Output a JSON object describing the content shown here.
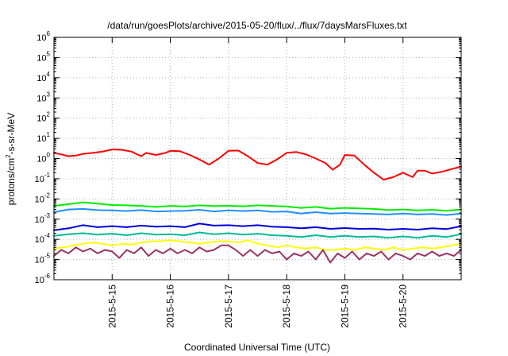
{
  "chart_data": {
    "type": "line",
    "title": "/data/run/goesPlots/archive/2015-05-20/flux/../flux/7daysMarsFluxes.txt",
    "xlabel": "Coordinated Universal Time (UTC)",
    "ylabel": {
      "pre": "protons/cm",
      "sup": "2",
      "post": "-s-sr-MeV"
    },
    "y_scale": "log",
    "ylim": [
      1e-06,
      1000000
    ],
    "y_ticks": [
      {
        "base": "10",
        "exp": "-6"
      },
      {
        "base": "10",
        "exp": "-5"
      },
      {
        "base": "10",
        "exp": "-4"
      },
      {
        "base": "10",
        "exp": "-3"
      },
      {
        "base": "10",
        "exp": "-2"
      },
      {
        "base": "10",
        "exp": "-1"
      },
      {
        "base": "10",
        "exp": "0"
      },
      {
        "base": "10",
        "exp": "1"
      },
      {
        "base": "10",
        "exp": "2"
      },
      {
        "base": "10",
        "exp": "3"
      },
      {
        "base": "10",
        "exp": "4"
      },
      {
        "base": "10",
        "exp": "5"
      },
      {
        "base": "10",
        "exp": "6"
      }
    ],
    "x_start": "2015-05-14 00:00",
    "x_end": "2015-05-21 00:00",
    "x_ticks": [
      "2015-5-15",
      "2015-5-16",
      "2015-5-17",
      "2015-5-18",
      "2015-5-19",
      "2015-5-20"
    ],
    "grid": true,
    "series": [
      {
        "color": "#ff0000",
        "x": [
          "2015-05-14 00:00",
          "2015-05-14 03:00",
          "2015-05-14 06:00",
          "2015-05-14 09:00",
          "2015-05-14 12:00",
          "2015-05-14 16:00",
          "2015-05-14 20:00",
          "2015-05-15 00:00",
          "2015-05-15 04:00",
          "2015-05-15 08:00",
          "2015-05-15 12:00",
          "2015-05-15 14:00",
          "2015-05-15 18:00",
          "2015-05-15 22:00",
          "2015-05-16 00:00",
          "2015-05-16 04:00",
          "2015-05-16 08:00",
          "2015-05-16 12:00",
          "2015-05-16 16:00",
          "2015-05-16 20:00",
          "2015-05-17 00:00",
          "2015-05-17 04:00",
          "2015-05-17 08:00",
          "2015-05-17 12:00",
          "2015-05-17 16:00",
          "2015-05-17 20:00",
          "2015-05-18 00:00",
          "2015-05-18 04:00",
          "2015-05-18 08:00",
          "2015-05-18 12:00",
          "2015-05-18 16:00",
          "2015-05-18 19:00",
          "2015-05-18 22:00",
          "2015-05-19 00:00",
          "2015-05-19 04:00",
          "2015-05-19 08:00",
          "2015-05-19 12:00",
          "2015-05-19 16:00",
          "2015-05-19 20:00",
          "2015-05-20 00:00",
          "2015-05-20 04:00",
          "2015-05-20 06:00",
          "2015-05-20 09:00",
          "2015-05-20 12:00",
          "2015-05-20 16:00",
          "2015-05-20 20:00",
          "2015-05-21 00:00"
        ],
        "values": [
          1.9,
          1.6,
          1.3,
          1.4,
          1.7,
          1.9,
          2.2,
          2.8,
          2.7,
          2.2,
          1.3,
          1.9,
          1.5,
          1.9,
          2.4,
          2.3,
          1.5,
          0.9,
          0.5,
          1.0,
          2.4,
          2.5,
          1.3,
          0.6,
          0.5,
          0.9,
          1.9,
          2.1,
          1.6,
          1.0,
          0.6,
          0.28,
          0.5,
          1.5,
          1.4,
          0.5,
          0.2,
          0.09,
          0.12,
          0.2,
          0.12,
          0.25,
          0.25,
          0.18,
          0.22,
          0.3,
          0.4
        ]
      },
      {
        "color": "#00ee00",
        "x": [
          "2015-05-14 00:00",
          "2015-05-14 06:00",
          "2015-05-14 12:00",
          "2015-05-14 18:00",
          "2015-05-15 00:00",
          "2015-05-15 06:00",
          "2015-05-15 12:00",
          "2015-05-15 18:00",
          "2015-05-16 00:00",
          "2015-05-16 06:00",
          "2015-05-16 12:00",
          "2015-05-16 18:00",
          "2015-05-17 00:00",
          "2015-05-17 06:00",
          "2015-05-17 12:00",
          "2015-05-17 18:00",
          "2015-05-18 00:00",
          "2015-05-18 06:00",
          "2015-05-18 12:00",
          "2015-05-18 18:00",
          "2015-05-19 00:00",
          "2015-05-19 06:00",
          "2015-05-19 12:00",
          "2015-05-19 18:00",
          "2015-05-20 00:00",
          "2015-05-20 06:00",
          "2015-05-20 12:00",
          "2015-05-20 18:00",
          "2015-05-21 00:00"
        ],
        "values": [
          0.0045,
          0.0055,
          0.0068,
          0.0058,
          0.005,
          0.0048,
          0.0045,
          0.004,
          0.0045,
          0.0042,
          0.0048,
          0.0044,
          0.0046,
          0.0043,
          0.0048,
          0.0045,
          0.0042,
          0.0036,
          0.004,
          0.0033,
          0.0036,
          0.0034,
          0.0032,
          0.0028,
          0.003,
          0.0027,
          0.0029,
          0.0026,
          0.003
        ]
      },
      {
        "color": "#1e90ff",
        "x": [
          "2015-05-14 00:00",
          "2015-05-14 06:00",
          "2015-05-14 12:00",
          "2015-05-14 18:00",
          "2015-05-15 00:00",
          "2015-05-15 06:00",
          "2015-05-15 12:00",
          "2015-05-15 18:00",
          "2015-05-16 00:00",
          "2015-05-16 06:00",
          "2015-05-16 12:00",
          "2015-05-16 18:00",
          "2015-05-17 00:00",
          "2015-05-17 06:00",
          "2015-05-17 12:00",
          "2015-05-17 18:00",
          "2015-05-18 00:00",
          "2015-05-18 06:00",
          "2015-05-18 12:00",
          "2015-05-18 18:00",
          "2015-05-19 00:00",
          "2015-05-19 06:00",
          "2015-05-19 12:00",
          "2015-05-19 18:00",
          "2015-05-20 00:00",
          "2015-05-20 06:00",
          "2015-05-20 12:00",
          "2015-05-20 18:00",
          "2015-05-21 00:00"
        ],
        "values": [
          0.0022,
          0.003,
          0.0032,
          0.0028,
          0.0027,
          0.0025,
          0.0028,
          0.0024,
          0.0025,
          0.0026,
          0.0029,
          0.0024,
          0.0027,
          0.0025,
          0.0027,
          0.0023,
          0.0024,
          0.0019,
          0.0022,
          0.0019,
          0.002,
          0.0019,
          0.0018,
          0.0017,
          0.0019,
          0.0017,
          0.0018,
          0.0016,
          0.0019
        ]
      },
      {
        "color": "#0000dd",
        "x": [
          "2015-05-14 00:00",
          "2015-05-14 06:00",
          "2015-05-14 12:00",
          "2015-05-14 18:00",
          "2015-05-15 00:00",
          "2015-05-15 06:00",
          "2015-05-15 12:00",
          "2015-05-15 18:00",
          "2015-05-16 00:00",
          "2015-05-16 06:00",
          "2015-05-16 12:00",
          "2015-05-16 18:00",
          "2015-05-17 00:00",
          "2015-05-17 06:00",
          "2015-05-17 12:00",
          "2015-05-17 18:00",
          "2015-05-18 00:00",
          "2015-05-18 06:00",
          "2015-05-18 12:00",
          "2015-05-18 18:00",
          "2015-05-19 00:00",
          "2015-05-19 06:00",
          "2015-05-19 12:00",
          "2015-05-19 18:00",
          "2015-05-20 00:00",
          "2015-05-20 06:00",
          "2015-05-20 12:00",
          "2015-05-20 18:00",
          "2015-05-21 00:00"
        ],
        "values": [
          0.00028,
          0.00035,
          0.0005,
          0.0004,
          0.00045,
          0.0004,
          0.00048,
          0.00042,
          0.00045,
          0.0004,
          0.0006,
          0.00048,
          0.0005,
          0.00045,
          0.0005,
          0.00042,
          0.0004,
          0.00035,
          0.0004,
          0.00033,
          0.00036,
          0.00033,
          0.00034,
          0.0003,
          0.00033,
          0.0003,
          0.00035,
          0.00032,
          0.00045
        ]
      },
      {
        "color": "#00bb99",
        "x": [
          "2015-05-14 00:00",
          "2015-05-14 06:00",
          "2015-05-14 12:00",
          "2015-05-14 18:00",
          "2015-05-15 00:00",
          "2015-05-15 06:00",
          "2015-05-15 12:00",
          "2015-05-15 18:00",
          "2015-05-16 00:00",
          "2015-05-16 06:00",
          "2015-05-16 12:00",
          "2015-05-16 18:00",
          "2015-05-17 00:00",
          "2015-05-17 06:00",
          "2015-05-17 12:00",
          "2015-05-17 18:00",
          "2015-05-18 00:00",
          "2015-05-18 06:00",
          "2015-05-18 12:00",
          "2015-05-18 18:00",
          "2015-05-19 00:00",
          "2015-05-19 06:00",
          "2015-05-19 12:00",
          "2015-05-19 18:00",
          "2015-05-20 00:00",
          "2015-05-20 06:00",
          "2015-05-20 12:00",
          "2015-05-20 18:00",
          "2015-05-21 00:00"
        ],
        "values": [
          0.00015,
          0.00018,
          0.0002,
          0.00017,
          0.00019,
          0.00016,
          0.0002,
          0.00017,
          0.00018,
          0.00016,
          0.00022,
          0.00018,
          0.0002,
          0.00017,
          0.00019,
          0.00016,
          0.00015,
          0.00013,
          0.00016,
          0.00013,
          0.00015,
          0.00013,
          0.00014,
          0.00012,
          0.00014,
          0.00012,
          0.00015,
          0.00013,
          0.00018
        ]
      },
      {
        "color": "#ffff00",
        "x": [
          "2015-05-14 00:00",
          "2015-05-14 04:00",
          "2015-05-14 08:00",
          "2015-05-14 12:00",
          "2015-05-14 16:00",
          "2015-05-14 20:00",
          "2015-05-15 00:00",
          "2015-05-15 04:00",
          "2015-05-15 08:00",
          "2015-05-15 12:00",
          "2015-05-15 16:00",
          "2015-05-15 20:00",
          "2015-05-16 00:00",
          "2015-05-16 04:00",
          "2015-05-16 08:00",
          "2015-05-16 12:00",
          "2015-05-16 16:00",
          "2015-05-16 20:00",
          "2015-05-17 00:00",
          "2015-05-17 04:00",
          "2015-05-17 08:00",
          "2015-05-17 12:00",
          "2015-05-17 16:00",
          "2015-05-17 20:00",
          "2015-05-18 00:00",
          "2015-05-18 04:00",
          "2015-05-18 08:00",
          "2015-05-18 12:00",
          "2015-05-18 16:00",
          "2015-05-18 20:00",
          "2015-05-19 00:00",
          "2015-05-19 04:00",
          "2015-05-19 08:00",
          "2015-05-19 12:00",
          "2015-05-19 16:00",
          "2015-05-19 20:00",
          "2015-05-20 00:00",
          "2015-05-20 04:00",
          "2015-05-20 08:00",
          "2015-05-20 12:00",
          "2015-05-20 16:00",
          "2015-05-20 20:00",
          "2015-05-21 00:00"
        ],
        "values": [
          3.5e-05,
          4e-05,
          5e-05,
          6e-05,
          7e-05,
          6e-05,
          5e-05,
          6e-05,
          5.5e-05,
          7e-05,
          8e-05,
          8e-05,
          9e-05,
          8e-05,
          7e-05,
          6e-05,
          7e-05,
          8e-05,
          8e-05,
          7e-05,
          9e-05,
          6e-05,
          5e-05,
          4e-05,
          5e-05,
          4e-05,
          3.5e-05,
          4e-05,
          3e-05,
          3e-05,
          3.5e-05,
          3e-05,
          4e-05,
          3.5e-05,
          3e-05,
          4e-05,
          3e-05,
          3.5e-05,
          4e-05,
          3.5e-05,
          4e-05,
          5e-05,
          6e-05
        ]
      },
      {
        "color": "#993366",
        "x": [
          "2015-05-14 00:00",
          "2015-05-14 03:00",
          "2015-05-14 06:00",
          "2015-05-14 09:00",
          "2015-05-14 12:00",
          "2015-05-14 15:00",
          "2015-05-14 18:00",
          "2015-05-14 21:00",
          "2015-05-15 00:00",
          "2015-05-15 03:00",
          "2015-05-15 06:00",
          "2015-05-15 09:00",
          "2015-05-15 12:00",
          "2015-05-15 15:00",
          "2015-05-15 18:00",
          "2015-05-15 21:00",
          "2015-05-16 00:00",
          "2015-05-16 03:00",
          "2015-05-16 06:00",
          "2015-05-16 09:00",
          "2015-05-16 12:00",
          "2015-05-16 15:00",
          "2015-05-16 18:00",
          "2015-05-16 21:00",
          "2015-05-17 00:00",
          "2015-05-17 03:00",
          "2015-05-17 06:00",
          "2015-05-17 09:00",
          "2015-05-17 12:00",
          "2015-05-17 15:00",
          "2015-05-17 18:00",
          "2015-05-17 21:00",
          "2015-05-18 00:00",
          "2015-05-18 03:00",
          "2015-05-18 06:00",
          "2015-05-18 09:00",
          "2015-05-18 12:00",
          "2015-05-18 15:00",
          "2015-05-18 18:00",
          "2015-05-18 21:00",
          "2015-05-19 00:00",
          "2015-05-19 03:00",
          "2015-05-19 06:00",
          "2015-05-19 09:00",
          "2015-05-19 12:00",
          "2015-05-19 15:00",
          "2015-05-19 18:00",
          "2015-05-19 21:00",
          "2015-05-20 00:00",
          "2015-05-20 03:00",
          "2015-05-20 06:00",
          "2015-05-20 09:00",
          "2015-05-20 12:00",
          "2015-05-20 15:00",
          "2015-05-20 18:00",
          "2015-05-20 21:00",
          "2015-05-21 00:00"
        ],
        "values": [
          1.5e-05,
          3e-05,
          2e-05,
          4e-05,
          2.5e-05,
          3.5e-05,
          2e-05,
          3e-05,
          2.5e-05,
          1.2e-05,
          3e-05,
          2e-05,
          4e-05,
          1.5e-05,
          3e-05,
          2e-05,
          3.5e-05,
          2e-05,
          3e-05,
          2e-05,
          4e-05,
          2.5e-05,
          3e-05,
          5e-05,
          5e-05,
          3e-05,
          1.5e-05,
          3e-05,
          1.5e-05,
          3e-05,
          2e-05,
          2.5e-05,
          1e-05,
          2e-05,
          1.5e-05,
          2.5e-05,
          1e-05,
          3e-05,
          7e-06,
          2e-05,
          1.2e-05,
          2.5e-05,
          1e-05,
          2e-05,
          1.5e-05,
          2.5e-05,
          1e-05,
          2e-05,
          1.5e-05,
          1e-05,
          2e-05,
          1.5e-05,
          2.5e-05,
          1.5e-05,
          2e-05,
          1.5e-05,
          3e-05
        ]
      }
    ]
  }
}
